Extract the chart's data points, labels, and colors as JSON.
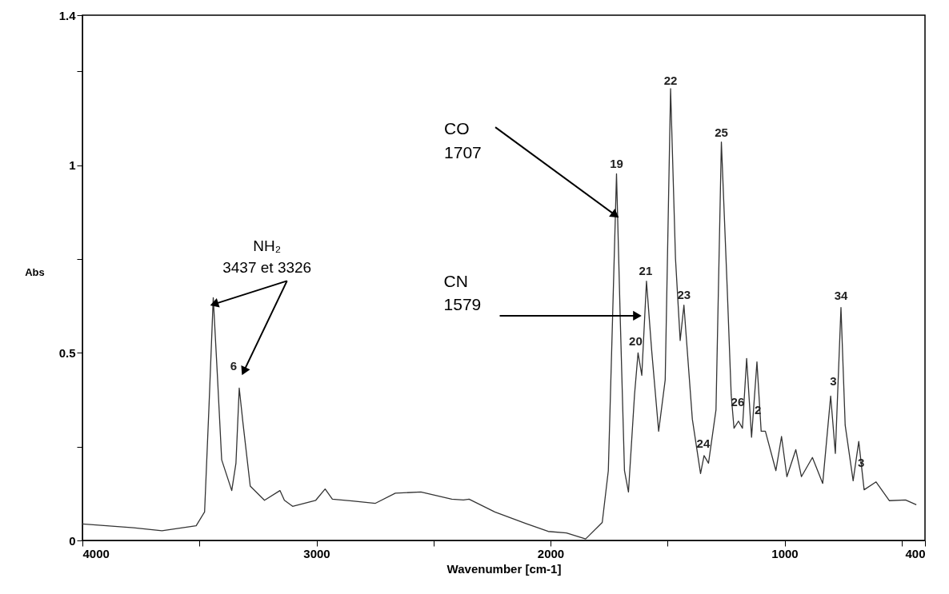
{
  "chart_data": {
    "type": "line",
    "xlabel": "Wavenumber [cm-1]",
    "ylabel": "Abs",
    "xlim": [
      4000,
      400
    ],
    "ylim": [
      0,
      1.4
    ],
    "xticks": [
      4000,
      {
        "value": 3500,
        "label": null
      },
      3000,
      {
        "value": 2500,
        "label": null
      },
      2000,
      {
        "value": 1500,
        "label": null
      },
      1000,
      {
        "value": 500,
        "label": null
      },
      400
    ],
    "yticks": [
      0,
      {
        "value": 0.25,
        "label": null
      },
      0.5,
      {
        "value": 0.75,
        "label": null
      },
      1,
      {
        "value": 1.25,
        "label": null
      },
      1.4
    ],
    "grid": false,
    "marker": "none",
    "line_style": "solid",
    "series": [
      {
        "color": "#333333",
        "x": [
          4000,
          3782,
          3660,
          3514,
          3478,
          3459,
          3441,
          3423,
          3405,
          3362,
          3344,
          3330,
          3314,
          3283,
          3222,
          3156,
          3137,
          3102,
          3003,
          2963,
          2932,
          2847,
          2748,
          2663,
          2554,
          2422,
          2372,
          2348,
          2238,
          2105,
          2010,
          1932,
          1850,
          1779,
          1753,
          1735,
          1718,
          1702,
          1684,
          1667,
          1641,
          1626,
          1610,
          1590,
          1568,
          1538,
          1510,
          1487,
          1466,
          1446,
          1430,
          1394,
          1359,
          1344,
          1325,
          1293,
          1270,
          1245,
          1228,
          1216,
          1197,
          1180,
          1162,
          1141,
          1118,
          1100,
          1082,
          1037,
          1013,
          990,
          952,
          928,
          881,
          837,
          803,
          783,
          759,
          741,
          707,
          683,
          660,
          609,
          552,
          483,
          437
        ],
        "values": [
          0.044,
          0.034,
          0.026,
          0.039,
          0.076,
          0.36,
          0.647,
          0.436,
          0.215,
          0.133,
          0.206,
          0.406,
          0.313,
          0.145,
          0.107,
          0.133,
          0.107,
          0.091,
          0.107,
          0.137,
          0.11,
          0.105,
          0.099,
          0.126,
          0.129,
          0.11,
          0.108,
          0.11,
          0.076,
          0.045,
          0.024,
          0.02,
          0.004,
          0.048,
          0.186,
          0.59,
          0.977,
          0.59,
          0.186,
          0.129,
          0.389,
          0.5,
          0.44,
          0.691,
          0.508,
          0.291,
          0.428,
          1.204,
          0.751,
          0.533,
          0.627,
          0.323,
          0.178,
          0.226,
          0.206,
          0.348,
          1.062,
          0.671,
          0.388,
          0.299,
          0.318,
          0.299,
          0.485,
          0.275,
          0.476,
          0.291,
          0.291,
          0.186,
          0.277,
          0.17,
          0.242,
          0.17,
          0.221,
          0.152,
          0.385,
          0.232,
          0.621,
          0.307,
          0.159,
          0.264,
          0.135,
          0.156,
          0.106,
          0.108,
          0.095
        ]
      }
    ],
    "annotations": [
      {
        "text": "NH₂\n3437 et 3326",
        "x": 3437,
        "y": 0.63
      },
      {
        "text": "CO\n1707",
        "x": 1723,
        "y": 0.867
      },
      {
        "text": "CN\n1579",
        "x": 1629,
        "y": 0.599
      },
      {
        "text": "6",
        "x": 3330,
        "y": 0.406
      },
      {
        "text": "19",
        "x": 1718,
        "y": 0.977
      },
      {
        "text": "20",
        "x": 1626,
        "y": 0.5
      },
      {
        "text": "21",
        "x": 1590,
        "y": 0.691
      },
      {
        "text": "22",
        "x": 1487,
        "y": 1.204
      },
      {
        "text": "23",
        "x": 1430,
        "y": 0.627
      },
      {
        "text": "24",
        "x": 1344,
        "y": 0.226
      },
      {
        "text": "25",
        "x": 1270,
        "y": 1.062
      },
      {
        "text": "26",
        "x": 1197,
        "y": 0.318
      },
      {
        "text": "2",
        "x": 1100,
        "y": 0.291
      },
      {
        "text": "34",
        "x": 759,
        "y": 0.621
      },
      {
        "text": "3",
        "x": 771,
        "y": 0.425
      },
      {
        "text": "3",
        "x": 707,
        "y": 0.159
      }
    ]
  }
}
